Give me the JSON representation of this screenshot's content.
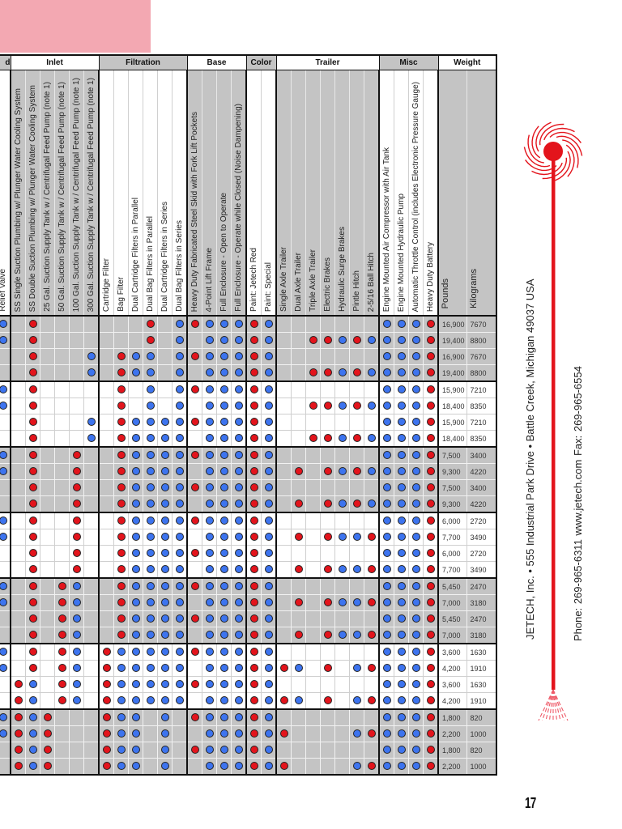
{
  "colors": {
    "red": "#e3141c",
    "blue": "#3d74ef",
    "pink": "#f3a8b2",
    "grey": "#c4c4c4"
  },
  "table": {
    "groups": [
      {
        "name": "d",
        "columns": [
          "Relief Valve"
        ]
      },
      {
        "name": "Inlet",
        "columns": [
          "SS Single Suction Plumbing  w/ Plunger Water Cooling System",
          "SS Double Suction Plumbing  w/ Plunger Water Cooling System",
          "25 Gal. Suction Supply Tank w / Centrifugal Feed Pump (note 1)",
          "50 Gal. Suction Supply Tank w / Centrifugal Feed Pump (note 1)",
          "100 Gal. Suction Supply Tank w / Centrifugal Feed Pump (note 1)",
          "300 Gal. Suction Supply Tank w / Centrifugal Feed Pump (note 1)"
        ]
      },
      {
        "name": "Filtration",
        "columns": [
          "Cartridge Filter",
          "Bag Filter",
          "Dual Cartridge Filters in Parallel",
          "Dual Bag Filters in Parallel",
          "Dual Cartridge Filters in Series",
          "Dual Bag Filters in Series"
        ]
      },
      {
        "name": "Base",
        "columns": [
          "Heavy Duty Fabricated Steel Skid with Fork Lift Pockets",
          "4-Point Lift Frame",
          "Full Enclosure - Open to Operate",
          "Full Enclosure - Operate while Closed (Noise Dampening)"
        ]
      },
      {
        "name": "Color",
        "columns": [
          "Paint:  Jetech Red",
          "Paint:  Special"
        ]
      },
      {
        "name": "Trailer",
        "columns": [
          "Single Axle Trailer",
          "Dual Axle Trailer",
          "Triple Axle Trailer",
          "Electric Brakes",
          "Hydraulic Surge Brakes",
          "Pintle Hitch",
          "2-5/16 Ball Hitch"
        ]
      },
      {
        "name": "Misc",
        "columns": [
          "Engine Mounted Air Compressor with Air Tank",
          "Engine Mounted Hydraulic Pump",
          "Automatic Throttle Control (includes Electronic Pressure Gauge)",
          "Heavy Duty Battery"
        ]
      },
      {
        "name": "Weight",
        "columns": [
          "Pounds",
          "Kilograms"
        ]
      }
    ],
    "rows": [
      {
        "dots": "b|.r....|...r.b|rbbb|rb|.......|bbbr",
        "pounds": "16,900",
        "kg": "7670"
      },
      {
        "dots": "b|.r....|...r.b|.bbb|rb|..rrbrb|bbbr",
        "pounds": "19,400",
        "kg": "8800"
      },
      {
        "dots": ".|.r...b|.rbb.b|rbbb|rb|.......|bbbr",
        "pounds": "16,900",
        "kg": "7670"
      },
      {
        "dots": ".|.r...b|.rbb.b|.bbb|rb|..rrbrb|bbbr",
        "pounds": "19,400",
        "kg": "8800"
      },
      {
        "dots": "b|.r....|.r.b.b|rbbb|rb|.......|bbbr",
        "pounds": "15,900",
        "kg": "7210"
      },
      {
        "dots": "b|.r....|.r.b.b|.bbb|rb|..rrbrb|bbbr",
        "pounds": "18,400",
        "kg": "8350"
      },
      {
        "dots": ".|.r...b|.rbbbb|rbbb|rb|.......|bbbr",
        "pounds": "15,900",
        "kg": "7210"
      },
      {
        "dots": ".|.r...b|.rbbbb|.bbb|rb|..rrbrb|bbbr",
        "pounds": "18,400",
        "kg": "8350"
      },
      {
        "dots": "b|.r..r.|.rbbbb|rbbb|rb|.......|bbbr",
        "pounds": "7,500",
        "kg": "3400"
      },
      {
        "dots": "b|.r..r.|.rbbbb|.bbb|rb|.r.rbrb|bbbr",
        "pounds": "9,300",
        "kg": "4220"
      },
      {
        "dots": ".|.r..r.|.rbbbb|rbbb|rb|.......|bbbr",
        "pounds": "7,500",
        "kg": "3400"
      },
      {
        "dots": ".|.r..r.|.rbbbb|.bbb|rb|.r.rbrb|bbbr",
        "pounds": "9,300",
        "kg": "4220"
      },
      {
        "dots": "b|.r..r.|.rbbbb|rbbb|rb|.......|bbbr",
        "pounds": "6,000",
        "kg": "2720"
      },
      {
        "dots": "b|.r..r.|.rbbbb|.bbb|rb|.r.rbbr|bbbr",
        "pounds": "7,700",
        "kg": "3490"
      },
      {
        "dots": ".|.r..r.|.rbbbb|rbbb|rb|.......|bbbr",
        "pounds": "6,000",
        "kg": "2720"
      },
      {
        "dots": ".|.r..r.|.rbbbb|.bbb|rb|.r.rbbr|bbbr",
        "pounds": "7,700",
        "kg": "3490"
      },
      {
        "dots": "b|.r.rb.|.rbbbb|rbbb|rb|.......|bbbr",
        "pounds": "5,450",
        "kg": "2470"
      },
      {
        "dots": "b|.r.rb.|.rbbbb|.bbb|rb|.r.rbbr|bbbr",
        "pounds": "7,000",
        "kg": "3180"
      },
      {
        "dots": ".|.r.rb.|.rbbbb|rbbb|rb|.......|bbbr",
        "pounds": "5,450",
        "kg": "2470"
      },
      {
        "dots": ".|.r.rb.|.rbbbb|.bbb|rb|.r.rbbr|bbbr",
        "pounds": "7,000",
        "kg": "3180"
      },
      {
        "dots": "b|.r.rb.|rbbbbb|rbbb|rb|.......|bbbr",
        "pounds": "3,600",
        "kg": "1630"
      },
      {
        "dots": "b|.r.rb.|rbbbbb|.bbb|rb|rb.r.br|bbbr",
        "pounds": "4,200",
        "kg": "1910"
      },
      {
        "dots": ".|rb.rb.|rbbbbb|rbbb|rb|.......|bbbr",
        "pounds": "3,600",
        "kg": "1630"
      },
      {
        "dots": ".|rb.rb.|rbbbbb|.bbb|rb|rb.r.br|bbbr",
        "pounds": "4,200",
        "kg": "1910"
      },
      {
        "dots": "b|rbr...|rbb.b.|rbbb|rb|.......|bbbr",
        "pounds": "1,800",
        "kg": "820"
      },
      {
        "dots": "b|rbr...|rbb.b.|.bbb|rb|r....br|bbbr",
        "pounds": "2,200",
        "kg": "1000"
      },
      {
        "dots": ".|rbr...|rbb.b.|rbbb|rb|.......|bbbr",
        "pounds": "1,800",
        "kg": "820"
      },
      {
        "dots": ".|rbr...|rbb.b.|.bbb|rb|r....br|bbbr",
        "pounds": "2,200",
        "kg": "1000"
      }
    ]
  },
  "sidebar": {
    "address": "JETECH, Inc. • 555 Industrial Park Drive • Battle Creek, Michigan 49037 USA",
    "contact": "Phone: 269-965-6311     www.jetech.com     Fax: 269-965-6554"
  },
  "page_number": "17"
}
